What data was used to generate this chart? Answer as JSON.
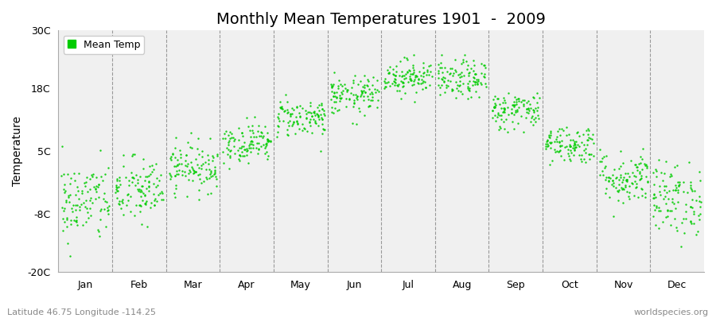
{
  "title": "Monthly Mean Temperatures 1901  -  2009",
  "ylabel": "Temperature",
  "subtitle_left": "Latitude 46.75 Longitude -114.25",
  "subtitle_right": "worldspecies.org",
  "legend_label": "Mean Temp",
  "dot_color": "#00CC00",
  "background_color": "#F0F0F0",
  "fig_background": "#FFFFFF",
  "ylim": [
    -20,
    30
  ],
  "yticks": [
    -20,
    -8,
    5,
    18,
    30
  ],
  "ytick_labels": [
    "-20C",
    "-8C",
    "5C",
    "18C",
    "30C"
  ],
  "months": [
    "Jan",
    "Feb",
    "Mar",
    "Apr",
    "May",
    "Jun",
    "Jul",
    "Aug",
    "Sep",
    "Oct",
    "Nov",
    "Dec"
  ],
  "month_means": [
    -5.5,
    -3.2,
    1.8,
    6.8,
    12.0,
    16.5,
    20.5,
    19.8,
    13.5,
    6.5,
    -0.5,
    -4.8
  ],
  "month_stds": [
    4.2,
    3.5,
    2.5,
    2.0,
    2.0,
    2.0,
    1.8,
    2.0,
    2.0,
    2.0,
    2.8,
    3.8
  ],
  "n_years": 109,
  "dot_size": 3,
  "title_fontsize": 14,
  "axis_fontsize": 10,
  "tick_fontsize": 9,
  "seed": 42
}
